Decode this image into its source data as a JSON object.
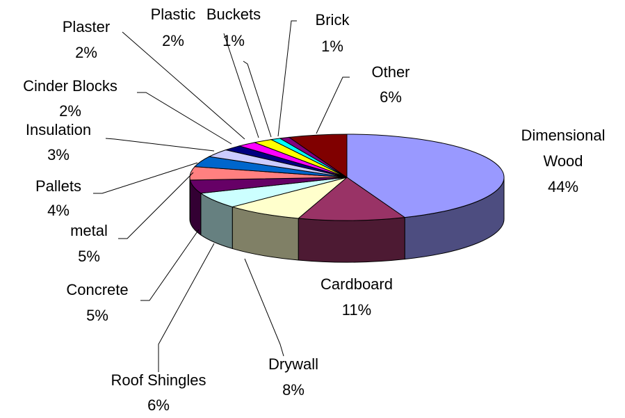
{
  "chart_data": {
    "type": "pie3d",
    "categories": [
      "Dimensional Wood",
      "Cardboard",
      "Drywall",
      "Roof Shingles",
      "Concrete",
      "metal",
      "Pallets",
      "Insulation",
      "Cinder Blocks",
      "Plaster",
      "Plastic",
      "Buckets",
      "Brick",
      "Other"
    ],
    "values": [
      44,
      11,
      8,
      6,
      5,
      5,
      4,
      3,
      2,
      2,
      2,
      1,
      1,
      6
    ],
    "value_labels": [
      "44%",
      "11%",
      "8%",
      "6%",
      "5%",
      "5%",
      "4%",
      "3%",
      "2%",
      "2%",
      "2%",
      "1%",
      "1%",
      "6%"
    ],
    "colors": [
      "#9999ff",
      "#993366",
      "#ffffcc",
      "#ccffff",
      "#660066",
      "#ff8080",
      "#0066cc",
      "#ccccff",
      "#000080",
      "#ff00ff",
      "#ffff00",
      "#00ffff",
      "#800080",
      "#800000"
    ]
  }
}
